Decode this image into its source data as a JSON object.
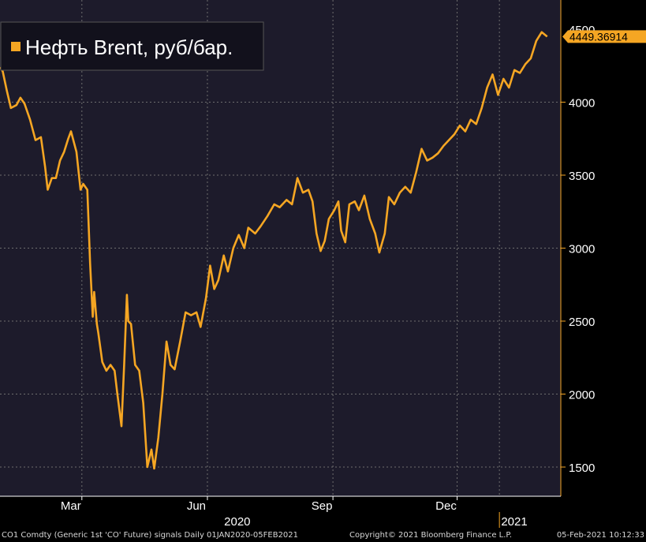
{
  "chart_data": {
    "type": "line",
    "title": "Нефть Brent, руб/бар.",
    "x_range": [
      "2020-01-01",
      "2021-02-05"
    ],
    "ylim": [
      1300,
      4700
    ],
    "y_ticks": [
      1500,
      2000,
      2500,
      3000,
      3500,
      4000
    ],
    "y_axis_side": "right",
    "grid": true,
    "legend_position": "top-left",
    "colors": {
      "background": "#1d1b2b",
      "line": "#f5a623",
      "grid": "#6e6e6e",
      "axis_text": "#ffffff"
    },
    "x_ticks": [
      {
        "date": "2020-03-01",
        "label": "Mar"
      },
      {
        "date": "2020-06-01",
        "label": "Jun"
      },
      {
        "date": "2020-09-01",
        "label": "Sep"
      },
      {
        "date": "2020-12-01",
        "label": "Dec"
      }
    ],
    "year_labels": [
      {
        "date": "2020-07-01",
        "label": "2020"
      },
      {
        "date": "2021-01-20",
        "label": "2021"
      }
    ],
    "last_value_label": "4449.36914",
    "series": [
      {
        "name": "Нефть Brent, руб/бар.",
        "points": [
          [
            "2020-01-01",
            4240
          ],
          [
            "2020-01-03",
            4210
          ],
          [
            "2020-01-06",
            4080
          ],
          [
            "2020-01-09",
            3960
          ],
          [
            "2020-01-13",
            3980
          ],
          [
            "2020-01-16",
            4030
          ],
          [
            "2020-01-19",
            3990
          ],
          [
            "2020-01-23",
            3880
          ],
          [
            "2020-01-27",
            3740
          ],
          [
            "2020-01-31",
            3760
          ],
          [
            "2020-02-03",
            3560
          ],
          [
            "2020-02-05",
            3400
          ],
          [
            "2020-02-08",
            3480
          ],
          [
            "2020-02-11",
            3480
          ],
          [
            "2020-02-14",
            3600
          ],
          [
            "2020-02-17",
            3660
          ],
          [
            "2020-02-20",
            3750
          ],
          [
            "2020-02-22",
            3800
          ],
          [
            "2020-02-26",
            3660
          ],
          [
            "2020-02-29",
            3400
          ],
          [
            "2020-03-02",
            3440
          ],
          [
            "2020-03-05",
            3400
          ],
          [
            "2020-03-07",
            2900
          ],
          [
            "2020-03-09",
            2530
          ],
          [
            "2020-03-10",
            2700
          ],
          [
            "2020-03-12",
            2480
          ],
          [
            "2020-03-13",
            2420
          ],
          [
            "2020-03-16",
            2220
          ],
          [
            "2020-03-19",
            2160
          ],
          [
            "2020-03-22",
            2200
          ],
          [
            "2020-03-25",
            2160
          ],
          [
            "2020-03-27",
            2000
          ],
          [
            "2020-03-30",
            1780
          ],
          [
            "2020-04-01",
            2200
          ],
          [
            "2020-04-03",
            2680
          ],
          [
            "2020-04-04",
            2500
          ],
          [
            "2020-04-06",
            2480
          ],
          [
            "2020-04-09",
            2200
          ],
          [
            "2020-04-12",
            2160
          ],
          [
            "2020-04-15",
            1940
          ],
          [
            "2020-04-18",
            1500
          ],
          [
            "2020-04-21",
            1620
          ],
          [
            "2020-04-23",
            1490
          ],
          [
            "2020-04-26",
            1700
          ],
          [
            "2020-04-29",
            2000
          ],
          [
            "2020-05-02",
            2360
          ],
          [
            "2020-05-05",
            2200
          ],
          [
            "2020-05-08",
            2170
          ],
          [
            "2020-05-12",
            2360
          ],
          [
            "2020-05-16",
            2560
          ],
          [
            "2020-05-20",
            2540
          ],
          [
            "2020-05-24",
            2560
          ],
          [
            "2020-05-27",
            2460
          ],
          [
            "2020-05-31",
            2660
          ],
          [
            "2020-06-03",
            2880
          ],
          [
            "2020-06-06",
            2720
          ],
          [
            "2020-06-09",
            2780
          ],
          [
            "2020-06-13",
            2950
          ],
          [
            "2020-06-16",
            2840
          ],
          [
            "2020-06-20",
            3000
          ],
          [
            "2020-06-24",
            3090
          ],
          [
            "2020-06-28",
            3000
          ],
          [
            "2020-07-01",
            3140
          ],
          [
            "2020-07-06",
            3100
          ],
          [
            "2020-07-10",
            3150
          ],
          [
            "2020-07-15",
            3220
          ],
          [
            "2020-07-20",
            3300
          ],
          [
            "2020-07-24",
            3280
          ],
          [
            "2020-07-29",
            3330
          ],
          [
            "2020-08-02",
            3300
          ],
          [
            "2020-08-06",
            3480
          ],
          [
            "2020-08-10",
            3380
          ],
          [
            "2020-08-14",
            3400
          ],
          [
            "2020-08-17",
            3320
          ],
          [
            "2020-08-20",
            3100
          ],
          [
            "2020-08-23",
            2980
          ],
          [
            "2020-08-26",
            3050
          ],
          [
            "2020-08-29",
            3200
          ],
          [
            "2020-09-02",
            3260
          ],
          [
            "2020-09-05",
            3320
          ],
          [
            "2020-09-07",
            3120
          ],
          [
            "2020-09-10",
            3040
          ],
          [
            "2020-09-13",
            3300
          ],
          [
            "2020-09-17",
            3320
          ],
          [
            "2020-09-20",
            3260
          ],
          [
            "2020-09-24",
            3360
          ],
          [
            "2020-09-28",
            3200
          ],
          [
            "2020-10-02",
            3100
          ],
          [
            "2020-10-05",
            2970
          ],
          [
            "2020-10-09",
            3100
          ],
          [
            "2020-10-12",
            3350
          ],
          [
            "2020-10-16",
            3300
          ],
          [
            "2020-10-20",
            3380
          ],
          [
            "2020-10-24",
            3420
          ],
          [
            "2020-10-28",
            3380
          ],
          [
            "2020-11-01",
            3520
          ],
          [
            "2020-11-05",
            3680
          ],
          [
            "2020-11-09",
            3600
          ],
          [
            "2020-11-13",
            3620
          ],
          [
            "2020-11-17",
            3650
          ],
          [
            "2020-11-21",
            3700
          ],
          [
            "2020-11-25",
            3740
          ],
          [
            "2020-11-29",
            3780
          ],
          [
            "2020-12-03",
            3840
          ],
          [
            "2020-12-07",
            3800
          ],
          [
            "2020-12-11",
            3880
          ],
          [
            "2020-12-15",
            3850
          ],
          [
            "2020-12-19",
            3960
          ],
          [
            "2020-12-23",
            4100
          ],
          [
            "2020-12-27",
            4190
          ],
          [
            "2020-12-31",
            4050
          ],
          [
            "2021-01-04",
            4160
          ],
          [
            "2021-01-08",
            4100
          ],
          [
            "2021-01-12",
            4220
          ],
          [
            "2021-01-16",
            4200
          ],
          [
            "2021-01-20",
            4260
          ],
          [
            "2021-01-24",
            4300
          ],
          [
            "2021-01-28",
            4420
          ],
          [
            "2021-02-01",
            4480
          ],
          [
            "2021-02-05",
            4449.37
          ]
        ]
      }
    ]
  },
  "footer": {
    "left": "CO1 Comdty (Generic 1st 'CO' Future) signals  Daily 01JAN2020-05FEB2021",
    "center": "Copyright© 2021 Bloomberg Finance L.P.",
    "right": "05-Feb-2021 10:12:33"
  }
}
